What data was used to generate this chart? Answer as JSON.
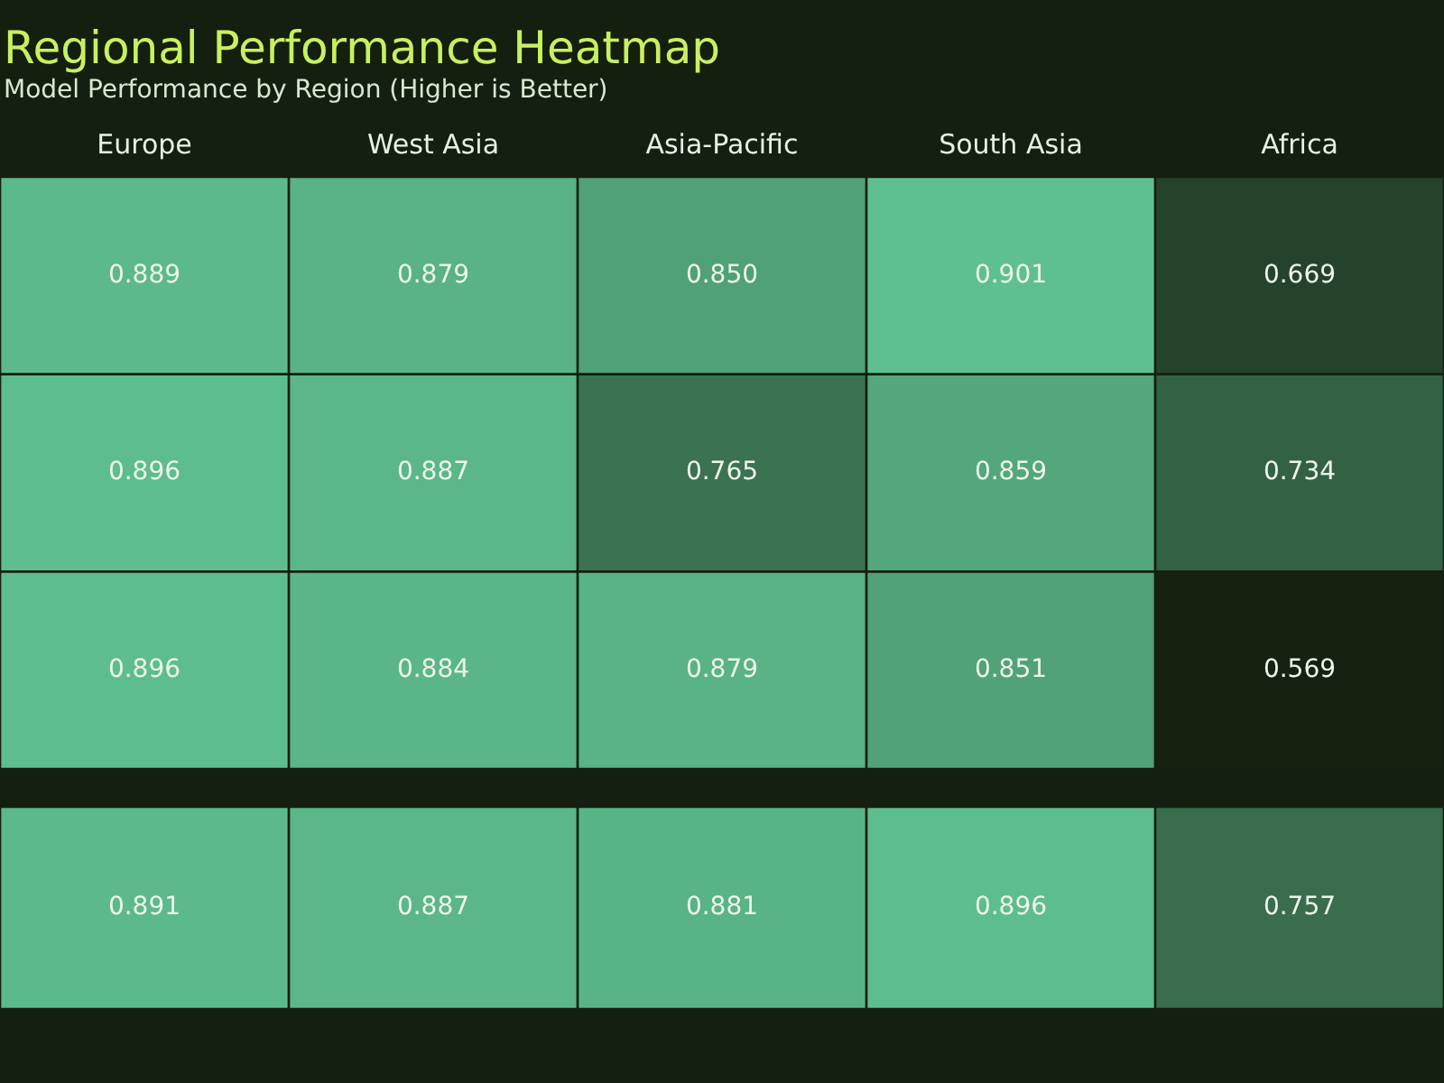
{
  "chart_data": [
    {
      "type": "heatmap",
      "title": "Regional Performance Heatmap",
      "subtitle": "Model Performance by Region (Higher is Better)",
      "categories": [
        "Europe",
        "West Asia",
        "Asia-Pacific",
        "South Asia",
        "Africa"
      ],
      "y_categories": [
        null,
        null,
        null
      ],
      "data_labels": true,
      "cells": [
        [
          0.889,
          0.879,
          0.85,
          0.901,
          0.669
        ],
        [
          0.896,
          0.887,
          0.765,
          0.859,
          0.734
        ],
        [
          0.896,
          0.884,
          0.879,
          0.851,
          0.569
        ]
      ],
      "cell_labels": [
        [
          "0.889",
          "0.879",
          "0.850",
          "0.901",
          "0.669"
        ],
        [
          "0.896",
          "0.887",
          "0.765",
          "0.859",
          "0.734"
        ],
        [
          "0.896",
          "0.884",
          "0.879",
          "0.851",
          "0.569"
        ]
      ]
    },
    {
      "type": "heatmap",
      "categories": [
        null,
        null,
        null,
        null,
        null
      ],
      "y_categories": [
        null
      ],
      "tick_labels": false,
      "data_labels": true,
      "cells": [
        [
          0.891,
          0.887,
          0.881,
          0.896,
          0.757
        ]
      ],
      "cell_labels": [
        [
          "0.891",
          "0.887",
          "0.881",
          "0.896",
          "0.757"
        ]
      ]
    }
  ]
}
